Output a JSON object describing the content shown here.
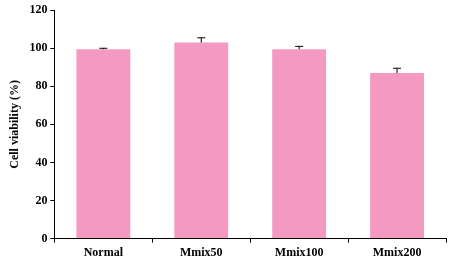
{
  "chart_data": {
    "type": "bar",
    "y_label": "Cell viability (%)",
    "categories": [
      "Normal",
      "Mmix50",
      "Mmix100",
      "Mmix200"
    ],
    "values": [
      99.5,
      103,
      99.5,
      87
    ],
    "errors": [
      0.5,
      2.5,
      1.5,
      2.5
    ],
    "color": "#f49ac2",
    "ylim": [
      0,
      120
    ],
    "yticks": [
      0,
      20,
      40,
      60,
      80,
      100,
      120
    ],
    "grid": false
  }
}
